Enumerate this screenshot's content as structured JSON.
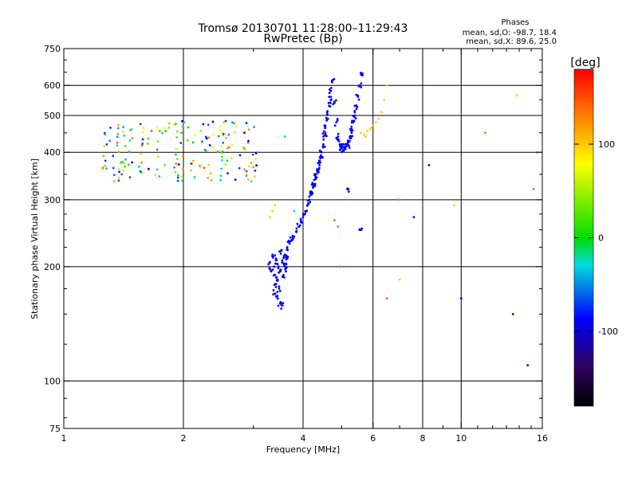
{
  "chart_data": {
    "type": "scatter",
    "title": "Tromsø 20130701 11:28:00–11:29:43",
    "subtitle": "RwPretec (Bp)",
    "stats": {
      "heading": "Phases",
      "line1": "mean, sd,O: -98.7, 18.4",
      "line2": "mean, sd,X:  89.6, 25.0"
    },
    "xlabel": "Frequency [MHz]",
    "ylabel": "Stationary phase Virtual Height [km]",
    "x_scale": "log",
    "y_scale": "log",
    "xlim": [
      1,
      16
    ],
    "ylim": [
      75,
      750
    ],
    "x_ticks": [
      1,
      2,
      4,
      6,
      8,
      10,
      16
    ],
    "x_tick_labels": [
      "1",
      "2",
      "4",
      "6",
      "8",
      "10",
      "16"
    ],
    "y_ticks": [
      75,
      100,
      200,
      300,
      400,
      500,
      600,
      750
    ],
    "y_tick_labels": [
      "75",
      "100",
      "200",
      "300",
      "400",
      "500",
      "600",
      "750"
    ],
    "grid": true,
    "colorbar": {
      "label": "[deg]",
      "range": [
        -180,
        180
      ],
      "ticks": [
        100,
        0,
        -100
      ],
      "tick_labels": [
        "100",
        "0",
        "-100"
      ],
      "colors": [
        "#ff0000",
        "#ff8000",
        "#ffff00",
        "#00dd00",
        "#00dddd",
        "#0000ff",
        "#300060",
        "#000000"
      ]
    },
    "series": [
      {
        "description_color": "blue",
        "phase": -100,
        "points": [
          [
            3.3,
            205
          ],
          [
            3.32,
            195
          ],
          [
            3.35,
            215
          ],
          [
            3.38,
            200
          ],
          [
            3.4,
            190
          ],
          [
            3.42,
            210
          ],
          [
            3.45,
            185
          ],
          [
            3.47,
            200
          ],
          [
            3.5,
            195
          ],
          [
            3.52,
            220
          ],
          [
            3.55,
            205
          ],
          [
            3.57,
            190
          ],
          [
            3.6,
            200
          ],
          [
            3.62,
            198
          ],
          [
            3.65,
            210
          ],
          [
            3.4,
            170
          ],
          [
            3.45,
            165
          ],
          [
            3.5,
            160
          ],
          [
            3.55,
            158
          ],
          [
            3.48,
            175
          ],
          [
            3.42,
            180
          ],
          [
            3.6,
            215
          ],
          [
            3.65,
            225
          ],
          [
            3.7,
            230
          ],
          [
            3.75,
            235
          ],
          [
            3.8,
            240
          ],
          [
            3.85,
            248
          ],
          [
            3.9,
            255
          ],
          [
            3.95,
            262
          ],
          [
            4.0,
            270
          ],
          [
            4.05,
            280
          ],
          [
            4.1,
            290
          ],
          [
            4.15,
            300
          ],
          [
            4.2,
            315
          ],
          [
            4.25,
            330
          ],
          [
            4.3,
            345
          ],
          [
            4.35,
            360
          ],
          [
            4.4,
            380
          ],
          [
            4.45,
            400
          ],
          [
            4.5,
            420
          ],
          [
            4.55,
            450
          ],
          [
            4.6,
            490
          ],
          [
            4.65,
            530
          ],
          [
            4.7,
            580
          ],
          [
            4.75,
            620
          ],
          [
            4.2,
            310
          ],
          [
            4.25,
            325
          ],
          [
            4.3,
            340
          ],
          [
            4.35,
            355
          ],
          [
            4.4,
            370
          ],
          [
            4.45,
            390
          ],
          [
            4.5,
            440
          ],
          [
            4.55,
            470
          ],
          [
            4.6,
            510
          ],
          [
            4.7,
            560
          ],
          [
            4.8,
            540
          ],
          [
            4.85,
            480
          ],
          [
            4.9,
            440
          ],
          [
            4.95,
            420
          ],
          [
            5.0,
            410
          ],
          [
            5.05,
            405
          ],
          [
            5.1,
            408
          ],
          [
            5.15,
            415
          ],
          [
            5.2,
            425
          ],
          [
            5.25,
            440
          ],
          [
            5.3,
            460
          ],
          [
            5.35,
            480
          ],
          [
            5.4,
            500
          ],
          [
            5.45,
            530
          ],
          [
            5.5,
            560
          ],
          [
            5.55,
            600
          ],
          [
            5.6,
            640
          ],
          [
            4.9,
            430
          ],
          [
            5.0,
            420
          ],
          [
            5.1,
            412
          ],
          [
            5.2,
            418
          ],
          [
            5.3,
            450
          ],
          [
            5.45,
            520
          ],
          [
            5.2,
            320
          ],
          [
            5.6,
            250
          ],
          [
            7.6,
            270
          ],
          [
            8.3,
            370
          ],
          [
            10.0,
            165
          ],
          [
            13.5,
            150
          ],
          [
            14.7,
            110
          ]
        ]
      },
      {
        "description_color": "yellow",
        "phase": 100,
        "points": [
          [
            5.6,
            450
          ],
          [
            5.7,
            445
          ],
          [
            5.8,
            455
          ],
          [
            5.9,
            460
          ],
          [
            6.0,
            470
          ],
          [
            6.1,
            480
          ],
          [
            6.2,
            490
          ],
          [
            6.3,
            510
          ],
          [
            6.4,
            550
          ],
          [
            6.5,
            600
          ],
          [
            5.75,
            440
          ],
          [
            5.95,
            465
          ],
          [
            3.3,
            270
          ],
          [
            3.35,
            280
          ],
          [
            3.4,
            290
          ],
          [
            9.6,
            290
          ],
          [
            7.0,
            185
          ],
          [
            13.8,
            565
          ]
        ]
      },
      {
        "description_color": "orange",
        "phase": 140,
        "points": [
          [
            4.8,
            265
          ],
          [
            4.9,
            255
          ],
          [
            4.95,
            200
          ],
          [
            6.5,
            165
          ],
          [
            7.0,
            300
          ],
          [
            11.5,
            450
          ],
          [
            15.2,
            320
          ]
        ]
      },
      {
        "description_color": "cyan",
        "phase": -40,
        "points": [
          [
            3.6,
            440
          ],
          [
            15.5,
            400
          ],
          [
            3.8,
            280
          ]
        ]
      },
      {
        "description_color": "mixed",
        "phase_range": [
          -120,
          150
        ],
        "cluster": {
          "x_range": [
            1.25,
            3.1
          ],
          "y_range": [
            335,
            485
          ],
          "count": 190
        }
      }
    ]
  }
}
